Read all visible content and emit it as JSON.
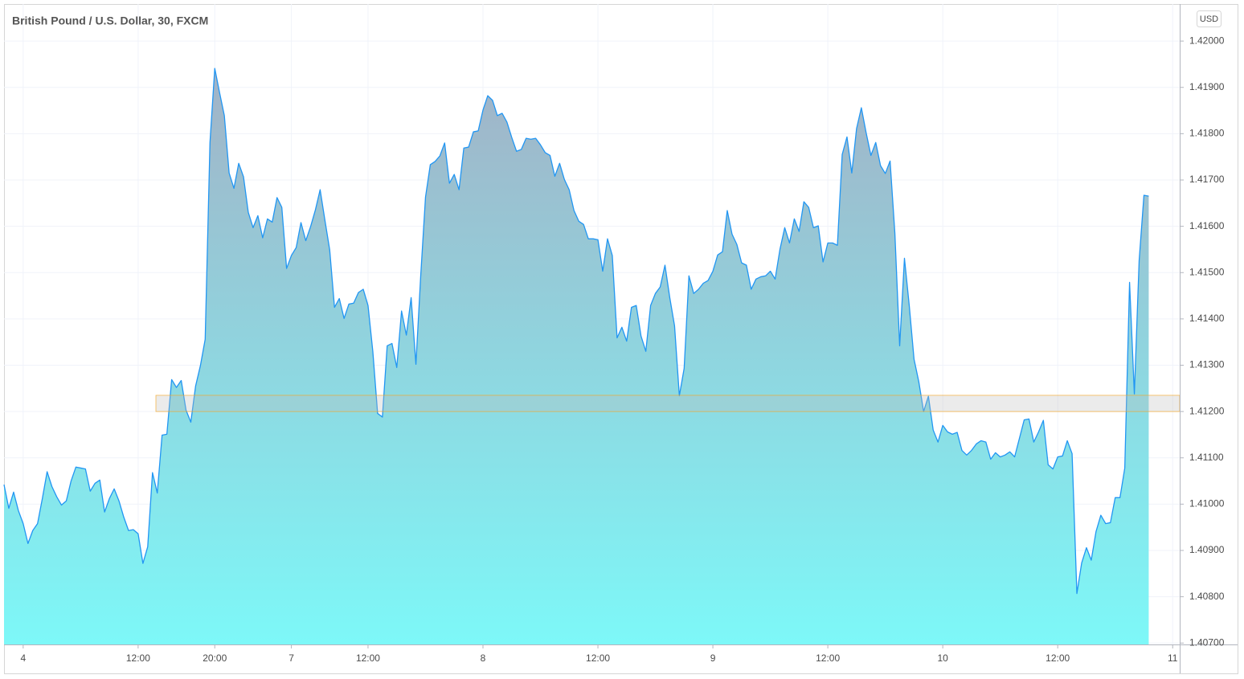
{
  "chart_data": {
    "type": "area",
    "title": "British Pound / U.S. Dollar, 30, FXCM",
    "currency": "USD",
    "color": "#2196f3",
    "area_colors": [
      "#a2b2c6",
      "#7df8f8"
    ],
    "grid": true,
    "ylim": [
      1.40697,
      1.4208
    ],
    "yticks": [
      {
        "value": 1.42,
        "label": "1.42000"
      },
      {
        "value": 1.419,
        "label": "1.41900"
      },
      {
        "value": 1.418,
        "label": "1.41800"
      },
      {
        "value": 1.417,
        "label": "1.41700"
      },
      {
        "value": 1.416,
        "label": "1.41600"
      },
      {
        "value": 1.415,
        "label": "1.41500"
      },
      {
        "value": 1.414,
        "label": "1.41400"
      },
      {
        "value": 1.413,
        "label": "1.41300"
      },
      {
        "value": 1.412,
        "label": "1.41200"
      },
      {
        "value": 1.411,
        "label": "1.41100"
      },
      {
        "value": 1.41,
        "label": "1.41000"
      },
      {
        "value": 1.409,
        "label": "1.40900"
      },
      {
        "value": 1.408,
        "label": "1.40800"
      },
      {
        "value": 1.407,
        "label": "1.40700"
      }
    ],
    "band": {
      "from": 1.412,
      "to": 1.41235,
      "color": "#f5a623"
    },
    "categories": [
      null,
      null,
      null,
      null,
      "4",
      null,
      null,
      null,
      null,
      null,
      null,
      null,
      null,
      null,
      null,
      null,
      null,
      null,
      null,
      null,
      null,
      null,
      null,
      null,
      null,
      null,
      null,
      null,
      "12:00",
      null,
      null,
      null,
      null,
      null,
      null,
      null,
      null,
      null,
      null,
      null,
      null,
      null,
      null,
      null,
      "20:00",
      null,
      null,
      null,
      null,
      null,
      null,
      null,
      null,
      null,
      null,
      null,
      null,
      null,
      null,
      null,
      "7",
      null,
      null,
      null,
      null,
      null,
      null,
      null,
      null,
      null,
      null,
      null,
      null,
      null,
      null,
      null,
      "12:00",
      null,
      null,
      null,
      null,
      null,
      null,
      null,
      null,
      null,
      null,
      null,
      null,
      null,
      null,
      null,
      null,
      null,
      null,
      null,
      null,
      null,
      null,
      null,
      "8",
      null,
      null,
      null,
      null,
      null,
      null,
      null,
      null,
      null,
      null,
      null,
      null,
      null,
      null,
      null,
      null,
      null,
      null,
      null,
      null,
      null,
      null,
      null,
      "12:00",
      null,
      null,
      null,
      null,
      null,
      null,
      null,
      null,
      null,
      null,
      null,
      null,
      null,
      null,
      null,
      null,
      null,
      null,
      null,
      null,
      null,
      null,
      null,
      "9",
      null,
      null,
      null,
      null,
      null,
      null,
      null,
      null,
      null,
      null,
      null,
      null,
      null,
      null,
      null,
      null,
      null,
      null,
      null,
      null,
      null,
      null,
      null,
      "12:00",
      null,
      null,
      null,
      null,
      null,
      null,
      null,
      null,
      null,
      null,
      null,
      null,
      null,
      null,
      null,
      null,
      null,
      null,
      null,
      null,
      null,
      null,
      null,
      "10",
      null,
      null,
      null,
      null,
      null,
      null,
      null,
      null,
      null,
      null,
      null,
      null,
      null,
      null,
      null,
      null,
      null,
      null,
      null,
      null,
      null,
      null,
      null,
      "12:00",
      null,
      null,
      null,
      null,
      null,
      null,
      null,
      null,
      null,
      null,
      null,
      null,
      null,
      null,
      null,
      null,
      null,
      null,
      null,
      null,
      null,
      null,
      null,
      "11"
    ],
    "values": [
      1.41042,
      1.40991,
      1.41026,
      1.40986,
      1.40958,
      1.40915,
      1.40943,
      1.40958,
      1.41012,
      1.4107,
      1.41038,
      1.41016,
      1.40998,
      1.41007,
      1.4105,
      1.4108,
      1.41078,
      1.41076,
      1.41028,
      1.41045,
      1.41052,
      1.40983,
      1.41012,
      1.41033,
      1.41007,
      1.40972,
      1.40943,
      1.40945,
      1.40936,
      1.40872,
      1.40908,
      1.41068,
      1.41024,
      1.41149,
      1.41151,
      1.41269,
      1.41252,
      1.41267,
      1.41203,
      1.41177,
      1.41255,
      1.41299,
      1.41356,
      1.41781,
      1.41941,
      1.41889,
      1.41839,
      1.41715,
      1.41682,
      1.41736,
      1.41707,
      1.4163,
      1.41597,
      1.41623,
      1.41575,
      1.41616,
      1.41609,
      1.41662,
      1.41641,
      1.41509,
      1.41537,
      1.41554,
      1.41608,
      1.41569,
      1.41599,
      1.41635,
      1.41679,
      1.41613,
      1.41549,
      1.41425,
      1.41444,
      1.41401,
      1.41432,
      1.41434,
      1.41457,
      1.41464,
      1.41429,
      1.4133,
      1.41196,
      1.41188,
      1.41342,
      1.41347,
      1.41295,
      1.41417,
      1.41365,
      1.41446,
      1.41302,
      1.41493,
      1.41663,
      1.41733,
      1.4174,
      1.41752,
      1.4178,
      1.41693,
      1.41712,
      1.41679,
      1.41769,
      1.41771,
      1.41804,
      1.41806,
      1.41851,
      1.41882,
      1.41872,
      1.41839,
      1.41844,
      1.41825,
      1.41792,
      1.41762,
      1.41766,
      1.4179,
      1.41788,
      1.4179,
      1.41776,
      1.41759,
      1.41753,
      1.41708,
      1.41736,
      1.41701,
      1.41679,
      1.41634,
      1.41611,
      1.41604,
      1.41573,
      1.41573,
      1.41571,
      1.41503,
      1.41573,
      1.41537,
      1.41359,
      1.41382,
      1.41352,
      1.41425,
      1.41429,
      1.41363,
      1.4133,
      1.41429,
      1.41455,
      1.41469,
      1.41516,
      1.41446,
      1.41385,
      1.41234,
      1.41293,
      1.41493,
      1.41455,
      1.41464,
      1.41477,
      1.41483,
      1.41503,
      1.41538,
      1.41545,
      1.41634,
      1.41583,
      1.41561,
      1.41521,
      1.41516,
      1.41464,
      1.41486,
      1.41491,
      1.41493,
      1.41503,
      1.41486,
      1.4155,
      1.41597,
      1.41564,
      1.41616,
      1.41589,
      1.41653,
      1.41641,
      1.41597,
      1.41601,
      1.41523,
      1.41564,
      1.41564,
      1.41559,
      1.41755,
      1.41793,
      1.41715,
      1.41811,
      1.41856,
      1.41802,
      1.41753,
      1.41781,
      1.41731,
      1.41714,
      1.41741,
      1.41585,
      1.41342,
      1.41531,
      1.41429,
      1.41313,
      1.41264,
      1.412,
      1.41233,
      1.4116,
      1.41134,
      1.4117,
      1.41156,
      1.41151,
      1.41155,
      1.41116,
      1.41106,
      1.41116,
      1.4113,
      1.41137,
      1.41134,
      1.41097,
      1.41111,
      1.41102,
      1.41106,
      1.41113,
      1.41102,
      1.41142,
      1.41182,
      1.41184,
      1.41134,
      1.41156,
      1.41181,
      1.41085,
      1.41076,
      1.41102,
      1.41104,
      1.41137,
      1.41109,
      1.40807,
      1.40873,
      1.40906,
      1.40879,
      1.40941,
      1.40976,
      1.40958,
      1.4096,
      1.41014,
      1.41014,
      1.41078,
      1.41479,
      1.41238,
      1.41526,
      1.41667,
      1.41665,
      null,
      null,
      null,
      null,
      null
    ]
  }
}
